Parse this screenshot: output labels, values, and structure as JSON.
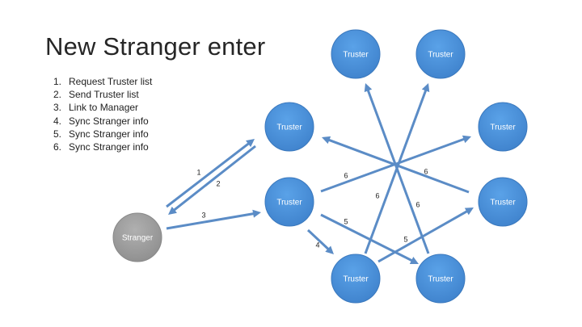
{
  "slide": {
    "title": "New Stranger enter",
    "steps": [
      {
        "num": "1.",
        "text": "Request Truster list"
      },
      {
        "num": "2.",
        "text": "Send Truster list"
      },
      {
        "num": "3.",
        "text": "Link to Manager"
      },
      {
        "num": "4.",
        "text": "Sync Stranger info"
      },
      {
        "num": "5.",
        "text": "Sync Stranger info"
      },
      {
        "num": "6.",
        "text": "Sync Stranger info"
      }
    ]
  },
  "diagram": {
    "colors": {
      "truster_fill": "#4a8fd6",
      "truster_stroke": "#3a78bd",
      "stranger_fill": "#9a9a9a",
      "stranger_stroke": "#888888",
      "arrow": "#5b8cc6"
    },
    "nodes": [
      {
        "id": "top-left",
        "label": "Truster",
        "kind": "truster"
      },
      {
        "id": "top-right",
        "label": "Truster",
        "kind": "truster"
      },
      {
        "id": "left-upper",
        "label": "Truster",
        "kind": "truster"
      },
      {
        "id": "right-upper",
        "label": "Truster",
        "kind": "truster"
      },
      {
        "id": "manager",
        "label": "Truster",
        "kind": "truster"
      },
      {
        "id": "right-lower",
        "label": "Truster",
        "kind": "truster"
      },
      {
        "id": "bottom-left",
        "label": "Truster",
        "kind": "truster"
      },
      {
        "id": "bottom-right",
        "label": "Truster",
        "kind": "truster"
      },
      {
        "id": "stranger",
        "label": "Stranger",
        "kind": "stranger"
      }
    ],
    "edges": [
      {
        "from": "stranger",
        "to": "left-upper",
        "label": "1"
      },
      {
        "from": "left-upper",
        "to": "stranger",
        "label": "2"
      },
      {
        "from": "stranger",
        "to": "manager",
        "label": "3"
      },
      {
        "from": "manager",
        "to": "bottom-left",
        "label": "4"
      },
      {
        "from": "manager",
        "to": "bottom-right",
        "label": "5"
      },
      {
        "from": "bottom-left",
        "to": "right-lower",
        "label": "5"
      },
      {
        "from": "manager",
        "to": "right-upper",
        "label": "6"
      },
      {
        "from": "right-lower",
        "to": "left-upper",
        "label": "6"
      },
      {
        "from": "bottom-left",
        "to": "top-right",
        "label": "6"
      },
      {
        "from": "bottom-right",
        "to": "top-left",
        "label": "6"
      }
    ]
  }
}
